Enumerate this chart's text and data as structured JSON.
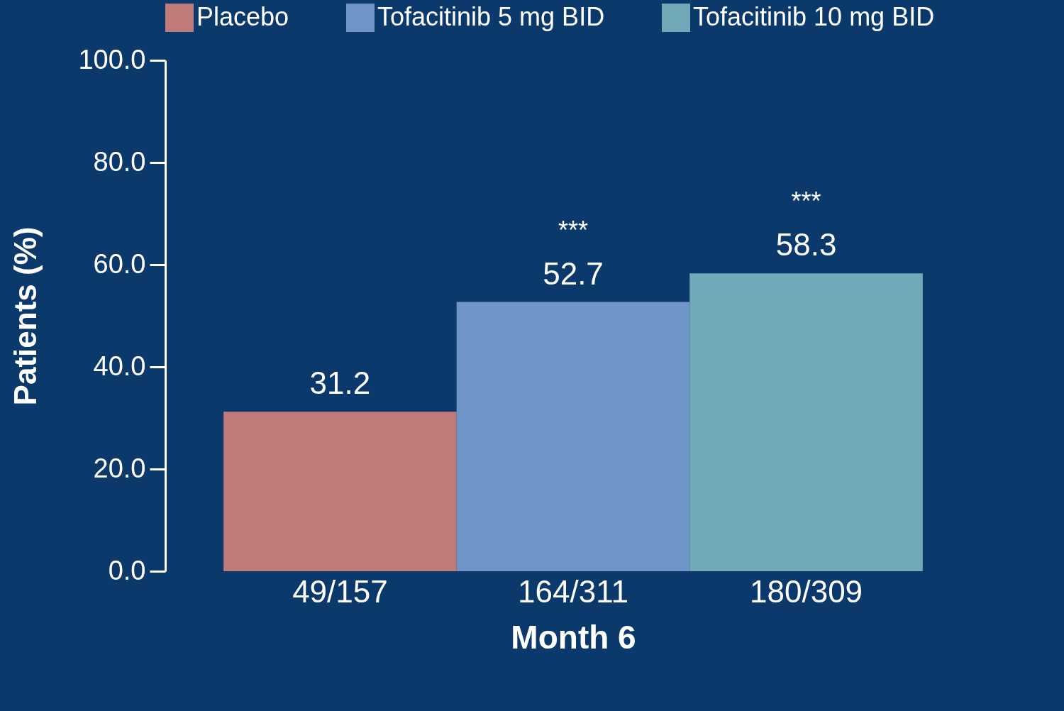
{
  "chart_data": {
    "type": "bar",
    "xlabel": "Month 6",
    "ylabel": "Patients (%)",
    "categories": [
      "49/157",
      "164/311",
      "180/309"
    ],
    "series": [
      {
        "name": "Placebo",
        "color": "#c07a78",
        "values": [
          31.2,
          null,
          null
        ]
      },
      {
        "name": "Tofacitinib 5 mg BID",
        "color": "#6f94c8",
        "values": [
          null,
          52.7,
          null
        ]
      },
      {
        "name": "Tofacitinib 10 mg BID",
        "color": "#72a9b8",
        "values": [
          null,
          null,
          58.3
        ]
      }
    ],
    "ylim": [
      0,
      100
    ],
    "yticks": [
      {
        "value": 0,
        "label": "0.0"
      },
      {
        "value": 20,
        "label": "20.0"
      },
      {
        "value": 40,
        "label": "40.0"
      },
      {
        "value": 60,
        "label": "60.0"
      },
      {
        "value": 80,
        "label": "80.0"
      },
      {
        "value": 100,
        "label": "100.0"
      }
    ],
    "data_labels": true,
    "annotations": [
      "***",
      "***"
    ],
    "grid": false,
    "legend": "top"
  }
}
